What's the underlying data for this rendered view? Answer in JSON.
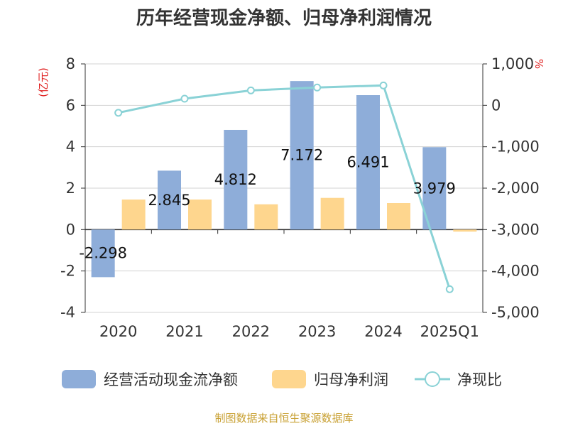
{
  "chart_data": {
    "type": "bar",
    "title": "历年经营现金净额、归母净利润情况",
    "categories": [
      "2020",
      "2021",
      "2022",
      "2023",
      "2024",
      "2025Q1"
    ],
    "series": [
      {
        "name": "经营活动现金流净额",
        "type": "bar",
        "axis": "left",
        "color": "#8eadd9",
        "values": [
          -2.298,
          2.845,
          4.812,
          7.172,
          6.491,
          3.979
        ]
      },
      {
        "name": "归母净利润",
        "type": "bar",
        "axis": "left",
        "color": "#fed68e",
        "values": [
          1.45,
          1.45,
          1.22,
          1.53,
          1.28,
          -0.1
        ]
      },
      {
        "name": "净现比",
        "type": "line",
        "axis": "right",
        "color": "#8ad2d6",
        "values": [
          -180,
          160,
          360,
          430,
          480,
          -4440
        ]
      }
    ],
    "data_labels": [
      "-2.298",
      "2.845",
      "4.812",
      "7.172",
      "6.491",
      "3.979"
    ],
    "left_axis": {
      "unit": "(亿元)",
      "range": [
        -4,
        8
      ],
      "ticks": [
        -4,
        -2,
        0,
        2,
        4,
        6,
        8
      ],
      "tick_labels": [
        "-4",
        "-2",
        "0",
        "2",
        "4",
        "6",
        "8"
      ]
    },
    "right_axis": {
      "unit": "%",
      "range": [
        -5000,
        1000
      ],
      "ticks": [
        -5000,
        -4000,
        -3000,
        -2000,
        -1000,
        0,
        1000
      ],
      "tick_labels": [
        "-5,000",
        "-4,000",
        "-3,000",
        "-2,000",
        "-1,000",
        "0",
        "1,000"
      ]
    },
    "grid": true,
    "legend_position": "bottom",
    "source": "制图数据来自恒生聚源数据库"
  }
}
